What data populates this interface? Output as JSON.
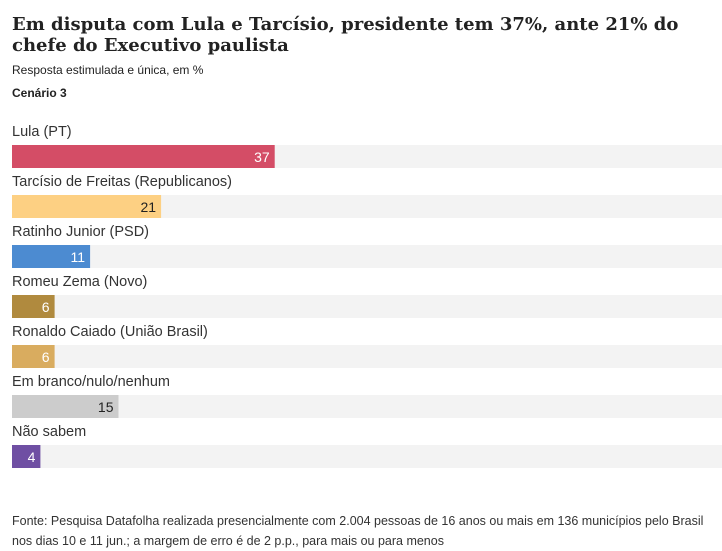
{
  "title": "Em disputa com Lula e Tarcísio, presidente tem 37%, ante 21% do chefe do Executivo paulista",
  "subtitle": "Resposta estimulada e única, em %",
  "scenario": "Cenário 3",
  "source": "Fonte: Pesquisa Datafolha realizada presencialmente com 2.004 pessoas de 16 anos ou mais em 136 municípios pelo Brasil nos dias 10 e 11 jun.; a margem de erro é de 2 p.p., para mais ou para menos",
  "chart_data": {
    "type": "bar",
    "orientation": "horizontal",
    "title": "Em disputa com Lula e Tarcísio, presidente tem 37%, ante 21% do chefe do Executivo paulista",
    "subtitle": "Resposta estimulada e única, em %",
    "categories": [
      "Lula (PT)",
      "Tarcísio de Freitas (Republicanos)",
      "Ratinho Junior (PSD)",
      "Romeu Zema (Novo)",
      "Ronaldo Caiado (União Brasil)",
      "Em branco/nulo/nenhum",
      "Não sabem"
    ],
    "values": [
      37,
      21,
      11,
      6,
      6,
      15,
      4
    ],
    "colors": [
      "#d44d66",
      "#fdd083",
      "#4c8bd1",
      "#b08a3e",
      "#d9ac5f",
      "#cccccc",
      "#6f4fa3"
    ],
    "value_label_colors": [
      "#ffffff",
      "#222222",
      "#ffffff",
      "#ffffff",
      "#ffffff",
      "#222222",
      "#ffffff"
    ],
    "track_color": "#f3f3f3",
    "xlim": [
      0,
      100
    ],
    "grid": false,
    "legend": "none"
  }
}
